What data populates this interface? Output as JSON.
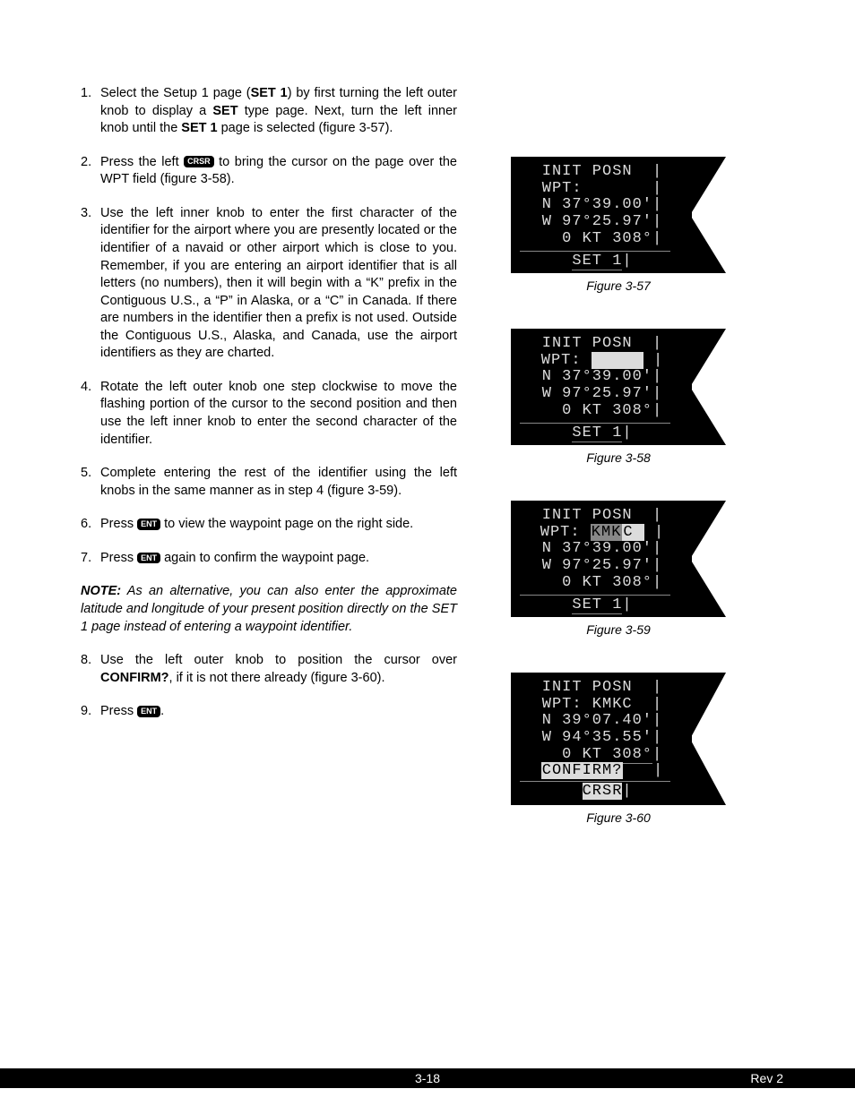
{
  "steps": {
    "1": {
      "num": "1.",
      "html": "Select the Setup 1 page (<b>SET 1</b>) by first turning the left outer knob to display a <b>SET</b> type page.  Next, turn the left inner knob until the <b>SET 1</b> page is selected (figure 3-57)."
    },
    "2": {
      "num": "2.",
      "prefix": "Press the left ",
      "key": "CRSR",
      "suffix": " to bring the cursor on the page over the WPT field (figure 3-58)."
    },
    "3": {
      "num": "3.",
      "html": "Use the left inner knob to enter the first character of the identifier for the airport where you are presently located or the identifier of a navaid or other airport which is close to you.  Remember, if you are entering an airport identifier that is all letters (no numbers), then it will begin with a “K” prefix in the Contiguous U.S., a “P” in Alaska, or a “C” in Canada.  If there are numbers in the identifier then a prefix is not used. Outside the Contiguous U.S., Alaska, and Canada, use the airport identifiers as they are charted."
    },
    "4": {
      "num": "4.",
      "html": "Rotate the left outer knob one step clockwise to move the flashing portion of the cursor to the second position and then use the left inner knob to enter the second character of the identifier."
    },
    "5": {
      "num": "5.",
      "html": "Complete entering the rest of the identifier using the left knobs in the same manner as in step 4 (figure 3-59)."
    },
    "6": {
      "num": "6.",
      "prefix": "Press ",
      "key": "ENT",
      "suffix": " to view the waypoint page on the right side."
    },
    "7": {
      "num": "7.",
      "prefix": "Press ",
      "key": "ENT",
      "suffix": " again to confirm the waypoint page."
    },
    "8": {
      "num": "8.",
      "html": "Use the left outer knob to position the cursor over <b>CONFIRM?</b>, if it is not there already (figure 3-60)."
    },
    "9": {
      "num": "9.",
      "prefix": "Press ",
      "key": "ENT",
      "suffix": "."
    }
  },
  "note": {
    "label": "NOTE:",
    "text": "  As an alternative, you can also enter the approximate latitude and longitude of your present position directly on the SET 1 page instead of entering a waypoint identifier."
  },
  "figures": {
    "57": {
      "caption": "Figure 3-57",
      "lines": [
        "INIT POSN",
        "WPT:",
        "N 37°39.00'",
        "W 97°25.97'",
        "  0 KT 308°"
      ],
      "bottom_pre": "SET 1",
      "bottom_bar": "|"
    },
    "58": {
      "caption": "Figure 3-58",
      "lines": [
        "INIT POSN",
        "N 37°39.00'",
        "W 97°25.97'",
        "  0 KT 308°"
      ],
      "wpt_label": "WPT: ",
      "wpt_sel": "     ",
      "bottom_pre": "SET 1",
      "bottom_bar": "|"
    },
    "59": {
      "caption": "Figure 3-59",
      "lines": [
        "INIT POSN",
        "N 37°39.00'",
        "W 97°25.97'",
        "  0 KT 308°"
      ],
      "wpt_label": "WPT: ",
      "wpt_sel_a": "KMK",
      "wpt_sel_b": "C ",
      "bottom_pre": "SET 1",
      "bottom_bar": "|"
    },
    "60": {
      "caption": "Figure 3-60",
      "lines": [
        "INIT POSN",
        "WPT: KMKC",
        "N 39°07.40'",
        "W 94°35.55'",
        "  0 KT 308°"
      ],
      "confirm": "CONFIRM?",
      "crsr": "CRSR"
    }
  },
  "footer": {
    "center": "3-18",
    "right": "Rev 2"
  }
}
